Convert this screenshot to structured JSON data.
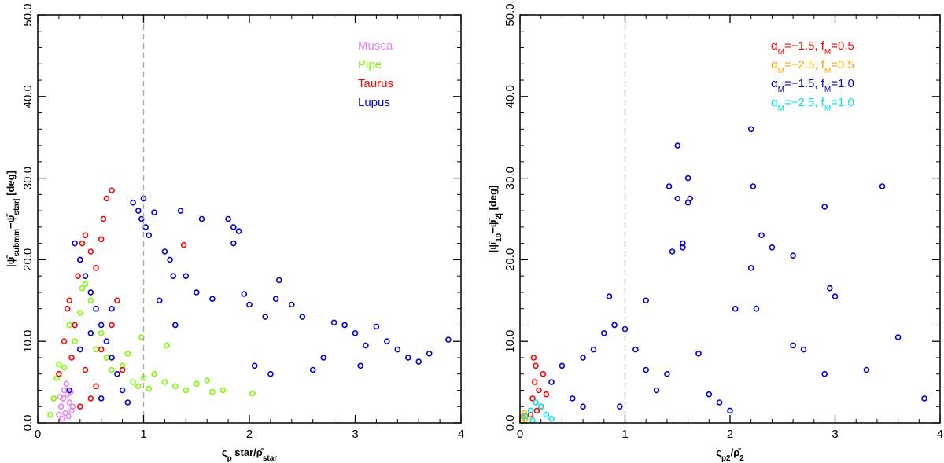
{
  "chart_data": [
    {
      "type": "scatter",
      "xlim": [
        0,
        4
      ],
      "ylim": [
        0,
        50
      ],
      "xticks": [
        0,
        1,
        2,
        3,
        4
      ],
      "yticks": [
        0,
        10,
        20,
        30,
        40,
        50
      ],
      "xtick_labels": [
        "0",
        "1",
        "2",
        "3",
        "4"
      ],
      "ytick_labels": [
        "0.0",
        "10.0",
        "20.0",
        "30.0",
        "40.0",
        "50.0"
      ],
      "xlabel": "ς_p star/ρ̄_star",
      "ylabel": "|ψ̄_submm−ψ̄_star| [deg]",
      "reference_line_x": 1,
      "legend_position": "top-right",
      "series": [
        {
          "name": "Musca",
          "color": "#ee82ee",
          "points": [
            [
              0.2,
              1.0
            ],
            [
              0.22,
              2.0
            ],
            [
              0.24,
              3.0
            ],
            [
              0.25,
              4.0
            ],
            [
              0.27,
              4.8
            ],
            [
              0.28,
              3.5
            ],
            [
              0.3,
              2.5
            ],
            [
              0.32,
              1.5
            ],
            [
              0.23,
              0.5
            ],
            [
              0.26,
              1.2
            ],
            [
              0.29,
              0.8
            ],
            [
              0.21,
              3.2
            ],
            [
              0.31,
              3.8
            ],
            [
              0.33,
              2.0
            ]
          ]
        },
        {
          "name": "Pipe",
          "color": "#7cfc00",
          "points": [
            [
              0.12,
              1.0
            ],
            [
              0.15,
              3.0
            ],
            [
              0.18,
              5.5
            ],
            [
              0.2,
              7.2
            ],
            [
              0.25,
              6.8
            ],
            [
              0.3,
              12.0
            ],
            [
              0.35,
              10.0
            ],
            [
              0.4,
              13.5
            ],
            [
              0.42,
              16.5
            ],
            [
              0.45,
              17.0
            ],
            [
              0.5,
              15.0
            ],
            [
              0.55,
              9.0
            ],
            [
              0.6,
              11.0
            ],
            [
              0.65,
              8.0
            ],
            [
              0.7,
              6.5
            ],
            [
              0.8,
              7.0
            ],
            [
              0.9,
              5.0
            ],
            [
              0.95,
              4.5
            ],
            [
              1.0,
              5.5
            ],
            [
              1.05,
              4.2
            ],
            [
              1.1,
              6.0
            ],
            [
              1.2,
              5.0
            ],
            [
              1.3,
              4.5
            ],
            [
              1.4,
              4.0
            ],
            [
              1.5,
              4.8
            ],
            [
              1.6,
              5.2
            ],
            [
              1.65,
              3.8
            ],
            [
              1.75,
              4.0
            ],
            [
              1.22,
              9.5
            ],
            [
              2.03,
              3.6
            ],
            [
              0.98,
              10.5
            ],
            [
              0.85,
              8.5
            ]
          ]
        },
        {
          "name": "Taurus",
          "color": "#ff0000",
          "points": [
            [
              0.2,
              6.0
            ],
            [
              0.25,
              10.0
            ],
            [
              0.28,
              14.0
            ],
            [
              0.3,
              15.0
            ],
            [
              0.35,
              12.0
            ],
            [
              0.38,
              18.0
            ],
            [
              0.4,
              20.0
            ],
            [
              0.42,
              22.0
            ],
            [
              0.45,
              23.0
            ],
            [
              0.5,
              21.0
            ],
            [
              0.55,
              19.0
            ],
            [
              0.6,
              22.5
            ],
            [
              0.62,
              25.0
            ],
            [
              0.65,
              27.5
            ],
            [
              0.7,
              28.5
            ],
            [
              0.32,
              8.0
            ],
            [
              0.45,
              6.5
            ],
            [
              0.55,
              4.5
            ],
            [
              0.6,
              9.0
            ],
            [
              0.7,
              12.0
            ],
            [
              0.75,
              15.0
            ],
            [
              0.8,
              6.5
            ],
            [
              1.38,
              21.8
            ],
            [
              0.5,
              3.0
            ],
            [
              0.4,
              2.0
            ]
          ]
        },
        {
          "name": "Lupus",
          "color": "#0000dd",
          "points": [
            [
              0.35,
              22.0
            ],
            [
              0.4,
              20.0
            ],
            [
              0.45,
              18.0
            ],
            [
              0.5,
              16.0
            ],
            [
              0.55,
              14.0
            ],
            [
              0.6,
              12.0
            ],
            [
              0.65,
              10.0
            ],
            [
              0.7,
              8.0
            ],
            [
              0.75,
              6.0
            ],
            [
              0.8,
              4.0
            ],
            [
              0.85,
              2.5
            ],
            [
              0.9,
              27.0
            ],
            [
              0.95,
              26.0
            ],
            [
              0.98,
              25.0
            ],
            [
              1.0,
              27.5
            ],
            [
              1.02,
              24.0
            ],
            [
              1.05,
              23.0
            ],
            [
              1.1,
              25.8
            ],
            [
              1.15,
              15.0
            ],
            [
              1.2,
              21.0
            ],
            [
              1.25,
              20.0
            ],
            [
              1.3,
              12.0
            ],
            [
              1.35,
              26.0
            ],
            [
              1.4,
              18.0
            ],
            [
              1.5,
              16.0
            ],
            [
              1.55,
              25.0
            ],
            [
              1.65,
              15.2
            ],
            [
              1.8,
              25.0
            ],
            [
              1.85,
              24.0
            ],
            [
              1.9,
              23.5
            ],
            [
              1.85,
              22.0
            ],
            [
              1.95,
              15.8
            ],
            [
              2.0,
              14.5
            ],
            [
              2.05,
              7.0
            ],
            [
              2.15,
              13.0
            ],
            [
              2.25,
              15.2
            ],
            [
              2.28,
              17.5
            ],
            [
              2.4,
              14.5
            ],
            [
              2.5,
              13.0
            ],
            [
              2.6,
              6.5
            ],
            [
              2.7,
              8.0
            ],
            [
              2.8,
              12.3
            ],
            [
              2.9,
              12.0
            ],
            [
              3.0,
              11.0
            ],
            [
              3.1,
              9.5
            ],
            [
              3.2,
              11.8
            ],
            [
              3.3,
              10.0
            ],
            [
              3.4,
              9.0
            ],
            [
              3.5,
              8.0
            ],
            [
              3.6,
              7.5
            ],
            [
              3.7,
              8.5
            ],
            [
              3.88,
              10.2
            ],
            [
              1.28,
              18.0
            ],
            [
              0.7,
              14.0
            ],
            [
              0.5,
              11.0
            ],
            [
              0.4,
              9.0
            ],
            [
              0.3,
              4.0
            ],
            [
              0.6,
              3.0
            ],
            [
              2.2,
              6.0
            ],
            [
              3.05,
              7.0
            ]
          ]
        }
      ]
    },
    {
      "type": "scatter",
      "xlim": [
        0,
        4
      ],
      "ylim": [
        0,
        50
      ],
      "xticks": [
        0,
        1,
        2,
        3,
        4
      ],
      "yticks": [
        0,
        10,
        20,
        30,
        40,
        50
      ],
      "xtick_labels": [
        "0",
        "1",
        "2",
        "3",
        "4"
      ],
      "ytick_labels": [
        "0.0",
        "10.0",
        "20.0",
        "30.0",
        "40.0",
        "50.0"
      ],
      "xlabel": "ς_p2/ρ̄_2",
      "ylabel": "|ψ̄_10−ψ̄_2| [deg]",
      "reference_line_x": 1,
      "legend_position": "top-right",
      "series": [
        {
          "name": "α_M=−1.5, f_M=0.5",
          "color": "#ff0000",
          "points": [
            [
              0.1,
              1.0
            ],
            [
              0.12,
              3.0
            ],
            [
              0.14,
              5.0
            ],
            [
              0.15,
              7.0
            ],
            [
              0.18,
              4.0
            ],
            [
              0.2,
              2.0
            ],
            [
              0.22,
              6.0
            ],
            [
              0.25,
              3.5
            ],
            [
              0.16,
              1.5
            ],
            [
              0.13,
              8.0
            ]
          ]
        },
        {
          "name": "α_M=−2.5, f_M=0.5",
          "color": "#ffa500",
          "points": [
            [
              0.02,
              0.3
            ],
            [
              0.03,
              0.8
            ],
            [
              0.04,
              1.2
            ],
            [
              0.05,
              0.5
            ]
          ]
        },
        {
          "name": "α_M=−1.5, f_M=1.0",
          "color": "#0000dd",
          "points": [
            [
              0.3,
              5.0
            ],
            [
              0.4,
              7.0
            ],
            [
              0.5,
              3.0
            ],
            [
              0.6,
              8.0
            ],
            [
              0.7,
              9.0
            ],
            [
              0.8,
              11.0
            ],
            [
              0.85,
              15.5
            ],
            [
              0.9,
              12.0
            ],
            [
              1.0,
              11.5
            ],
            [
              1.1,
              9.0
            ],
            [
              1.2,
              6.5
            ],
            [
              1.3,
              4.0
            ],
            [
              1.4,
              6.0
            ],
            [
              1.42,
              29.0
            ],
            [
              1.45,
              21.0
            ],
            [
              1.5,
              27.5
            ],
            [
              1.5,
              34.0
            ],
            [
              1.55,
              22.0
            ],
            [
              1.55,
              21.5
            ],
            [
              1.6,
              27.0
            ],
            [
              1.6,
              30.0
            ],
            [
              1.62,
              27.5
            ],
            [
              1.7,
              8.5
            ],
            [
              1.8,
              3.5
            ],
            [
              1.9,
              2.5
            ],
            [
              2.0,
              1.5
            ],
            [
              2.05,
              14.0
            ],
            [
              2.2,
              36.0
            ],
            [
              2.2,
              19.0
            ],
            [
              2.22,
              29.0
            ],
            [
              2.25,
              14.0
            ],
            [
              2.3,
              23.0
            ],
            [
              2.4,
              21.5
            ],
            [
              2.6,
              20.5
            ],
            [
              2.6,
              9.5
            ],
            [
              2.7,
              9.0
            ],
            [
              2.9,
              26.5
            ],
            [
              2.9,
              6.0
            ],
            [
              2.95,
              16.5
            ],
            [
              3.0,
              15.5
            ],
            [
              3.3,
              6.5
            ],
            [
              3.45,
              29.0
            ],
            [
              3.6,
              10.5
            ],
            [
              3.85,
              3.0
            ],
            [
              1.2,
              15.0
            ],
            [
              0.95,
              2.0
            ],
            [
              0.6,
              2.0
            ]
          ]
        },
        {
          "name": "α_M=−2.5, f_M=1.0",
          "color": "#00e5ee",
          "points": [
            [
              0.05,
              0.8
            ],
            [
              0.1,
              1.5
            ],
            [
              0.15,
              2.5
            ],
            [
              0.2,
              2.0
            ],
            [
              0.25,
              1.0
            ],
            [
              0.3,
              0.5
            ],
            [
              0.12,
              0.3
            ]
          ]
        }
      ]
    }
  ]
}
